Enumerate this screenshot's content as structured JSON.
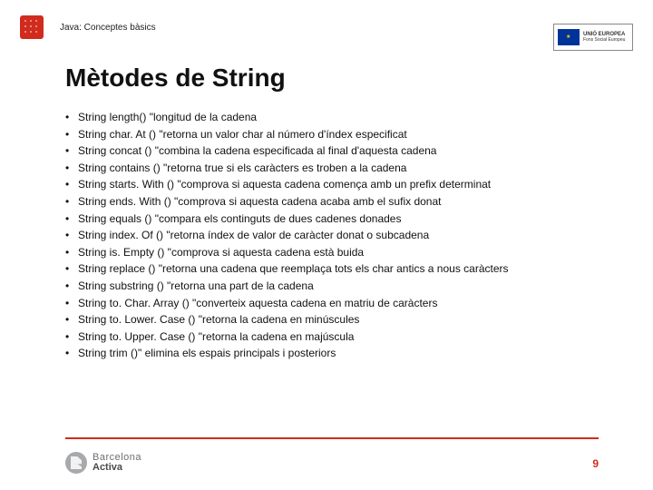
{
  "header": {
    "breadcrumb": "Java: Conceptes bàsics",
    "eu_label_bold": "UNIÓ EUROPEA",
    "eu_label_small": "Fons Social Europeu"
  },
  "title": "Mètodes de String",
  "bullets": [
    "String length() \"longitud de la cadena",
    "String char. At () \"retorna un valor char al número d'índex especificat",
    "String concat () \"combina la cadena especificada al final d'aquesta cadena",
    "String contains () \"retorna true si els caràcters es troben a la cadena",
    "String starts. With () \"comprova si aquesta cadena comença amb un prefix determinat",
    "String ends. With () \"comprova si aquesta cadena acaba amb el sufix donat",
    "String equals () \"compara els continguts de dues cadenes donades",
    "String index. Of () \"retorna índex de valor de caràcter donat o subcadena",
    "String is. Empty () \"comprova si aquesta cadena està buida",
    "String replace () \"retorna una cadena que reemplaça tots els char antics a nous caràcters",
    "String substring () \"retorna una part de la cadena",
    "String to. Char. Array () \"converteix aquesta cadena en matriu de caràcters",
    "String to. Lower. Case () \"retorna la cadena en minúscules",
    "String to. Upper. Case () \"retorna la cadena en majúscula",
    "String trim ()\" elimina els espais principals i posteriors"
  ],
  "footer": {
    "brand_line1": "Barcelona",
    "brand_line2": "Activa",
    "page_number": "9"
  },
  "colors": {
    "accent": "#d12b1e",
    "text": "#111111",
    "grey": "#6d6e71"
  }
}
